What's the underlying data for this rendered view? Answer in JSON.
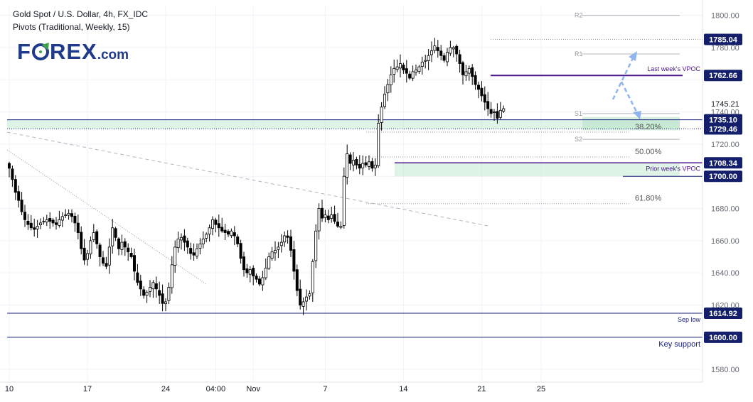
{
  "header": {
    "title": "Gold Spot / U.S. Dollar, 4h, FX_IDC",
    "indicator": "Pivots (Traditional, Weekly, 15)"
  },
  "logo": {
    "main_pre": "F",
    "main_post": "REX",
    "suffix": ".com"
  },
  "colors": {
    "up": "#ffffff",
    "down": "#000000",
    "candle_outline": "#000000",
    "support_line": "#1a237e",
    "vpoc_line": "#4a148c",
    "zone_fill": "#b9e4c9",
    "pivot_line": "#b2b5be",
    "fib_line": "#9598a1",
    "arrow": "#90b4f0",
    "grid": "#f0f3fa"
  },
  "chart_data": {
    "type": "candlestick",
    "symbol": "Gold Spot / U.S. Dollar",
    "timeframe": "4h",
    "y_axis": {
      "ticks": [
        1580,
        1600,
        1620,
        1640,
        1660,
        1680,
        1700,
        1720,
        1740,
        1760,
        1780,
        1800
      ],
      "tick_labels": [
        "1580.00",
        "1600.00",
        "1620.00",
        "1640.00",
        "1660.00",
        "1680.00",
        "1700.00",
        "1720.00",
        "1740.00",
        "1760.00",
        "1780.00",
        "1800.00"
      ],
      "ylim": [
        1573,
        1806
      ]
    },
    "x_axis": {
      "tick_labels": [
        "10",
        "17",
        "24",
        "04:00",
        "Nov",
        "7",
        "14",
        "21",
        "25"
      ],
      "tick_bar_index": [
        0,
        25,
        50,
        66,
        78,
        101,
        126,
        151,
        170
      ],
      "bar_count": 187
    },
    "closes": [
      1705,
      1698,
      1690,
      1685,
      1678,
      1673,
      1670,
      1668,
      1667,
      1669,
      1671,
      1672,
      1673,
      1672,
      1671,
      1670,
      1673,
      1675,
      1676,
      1677,
      1675,
      1671,
      1665,
      1655,
      1648,
      1652,
      1660,
      1665,
      1658,
      1650,
      1646,
      1644,
      1656,
      1668,
      1662,
      1655,
      1659,
      1656,
      1653,
      1650,
      1641,
      1634,
      1630,
      1626,
      1628,
      1631,
      1634,
      1630,
      1626,
      1621,
      1622,
      1631,
      1645,
      1656,
      1661,
      1662,
      1659,
      1656,
      1652,
      1651,
      1655,
      1658,
      1661,
      1664,
      1668,
      1673,
      1670,
      1668,
      1666,
      1665,
      1664,
      1666,
      1663,
      1658,
      1649,
      1642,
      1640,
      1642,
      1638,
      1636,
      1633,
      1637,
      1643,
      1650,
      1653,
      1654,
      1656,
      1659,
      1663,
      1662,
      1654,
      1641,
      1629,
      1620,
      1622,
      1625,
      1627,
      1647,
      1666,
      1680,
      1674,
      1676,
      1673,
      1676,
      1672,
      1669,
      1669,
      1700,
      1714,
      1708,
      1710,
      1707,
      1705,
      1708,
      1707,
      1709,
      1705,
      1707,
      1733,
      1743,
      1751,
      1757,
      1763,
      1767,
      1768,
      1770,
      1766,
      1764,
      1761,
      1765,
      1766,
      1768,
      1771,
      1772,
      1775,
      1778,
      1781,
      1778,
      1775,
      1772,
      1777,
      1780,
      1780,
      1776,
      1770,
      1763,
      1765,
      1767,
      1762,
      1757,
      1754,
      1750,
      1746,
      1742,
      1739,
      1740,
      1736,
      1741,
      1742
    ],
    "horizontal_levels": [
      {
        "value": 1785.04,
        "label": "1785.04",
        "style": "dotted"
      },
      {
        "value": 1762.66,
        "label": "1762.66",
        "name": "Last week's VPOC"
      },
      {
        "value": 1745.21,
        "label": "1745.21",
        "style": "price"
      },
      {
        "value": 1735.1,
        "label": "1735.10"
      },
      {
        "value": 1729.46,
        "label": "1729.46",
        "style": "dotted"
      },
      {
        "value": 1708.34,
        "label": "1708.34",
        "name": "Prior week's VPOC"
      },
      {
        "value": 1700.0,
        "label": "1700.00"
      },
      {
        "value": 1614.92,
        "label": "1614.92",
        "name": "Sep low"
      },
      {
        "value": 1600.0,
        "label": "1600.00",
        "name": "Key support"
      }
    ],
    "pivots": [
      {
        "name": "R2",
        "value": 1800
      },
      {
        "name": "R1",
        "value": 1776
      },
      {
        "name": "S1",
        "value": 1739
      },
      {
        "name": "S2",
        "value": 1723
      }
    ],
    "fib_levels": [
      {
        "label": "38.20%",
        "value": 1727.5
      },
      {
        "label": "50.00%",
        "value": 1712
      },
      {
        "label": "61.80%",
        "value": 1683
      }
    ],
    "zones": [
      {
        "from": 1729.46,
        "to": 1735.1
      },
      {
        "from": 1700.0,
        "to": 1708.34
      }
    ]
  },
  "price_labels": [
    "1785.04",
    "1762.66",
    "1745.21",
    "1735.10",
    "1729.46",
    "1708.34",
    "1700.00",
    "1614.92",
    "1600.00"
  ]
}
